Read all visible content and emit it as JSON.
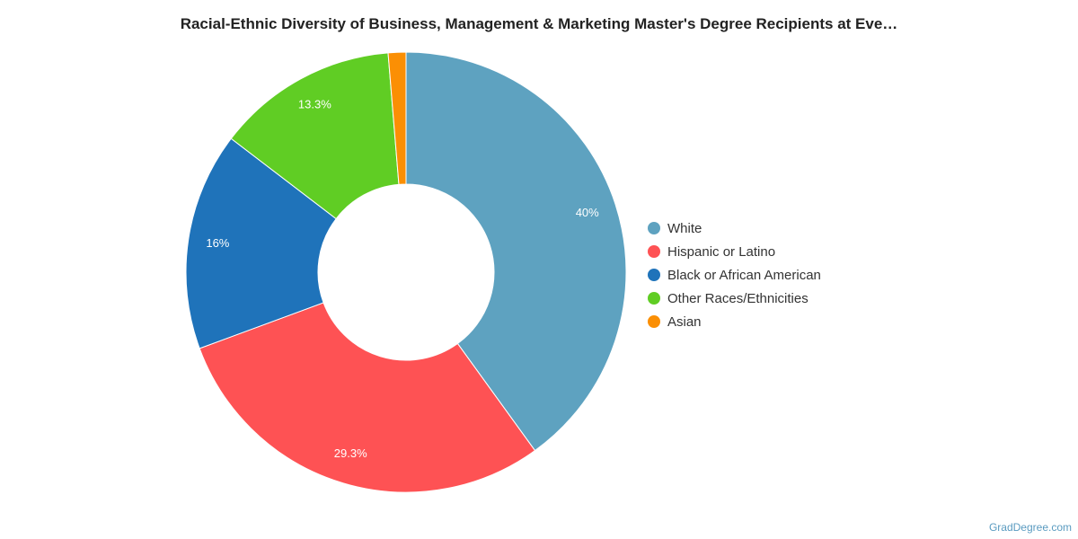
{
  "chart_data": {
    "type": "pie",
    "title": "Racial-Ethnic Diversity of Business, Management & Marketing Master's Degree Recipients at Eve…",
    "labels": [
      "White",
      "Hispanic or Latino",
      "Black or African American",
      "Other Races/Ethnicities",
      "Asian"
    ],
    "values": [
      40,
      29.3,
      16,
      13.3,
      1.3
    ],
    "display_labels": [
      "40%",
      "29.3%",
      "16%",
      "13.3%",
      ""
    ],
    "colors": [
      "#5ea2c0",
      "#fe5254",
      "#1f73ba",
      "#60cd24",
      "#fb8f04"
    ],
    "donut": true,
    "legend_position": "right"
  },
  "watermark": "GradDegree.com"
}
